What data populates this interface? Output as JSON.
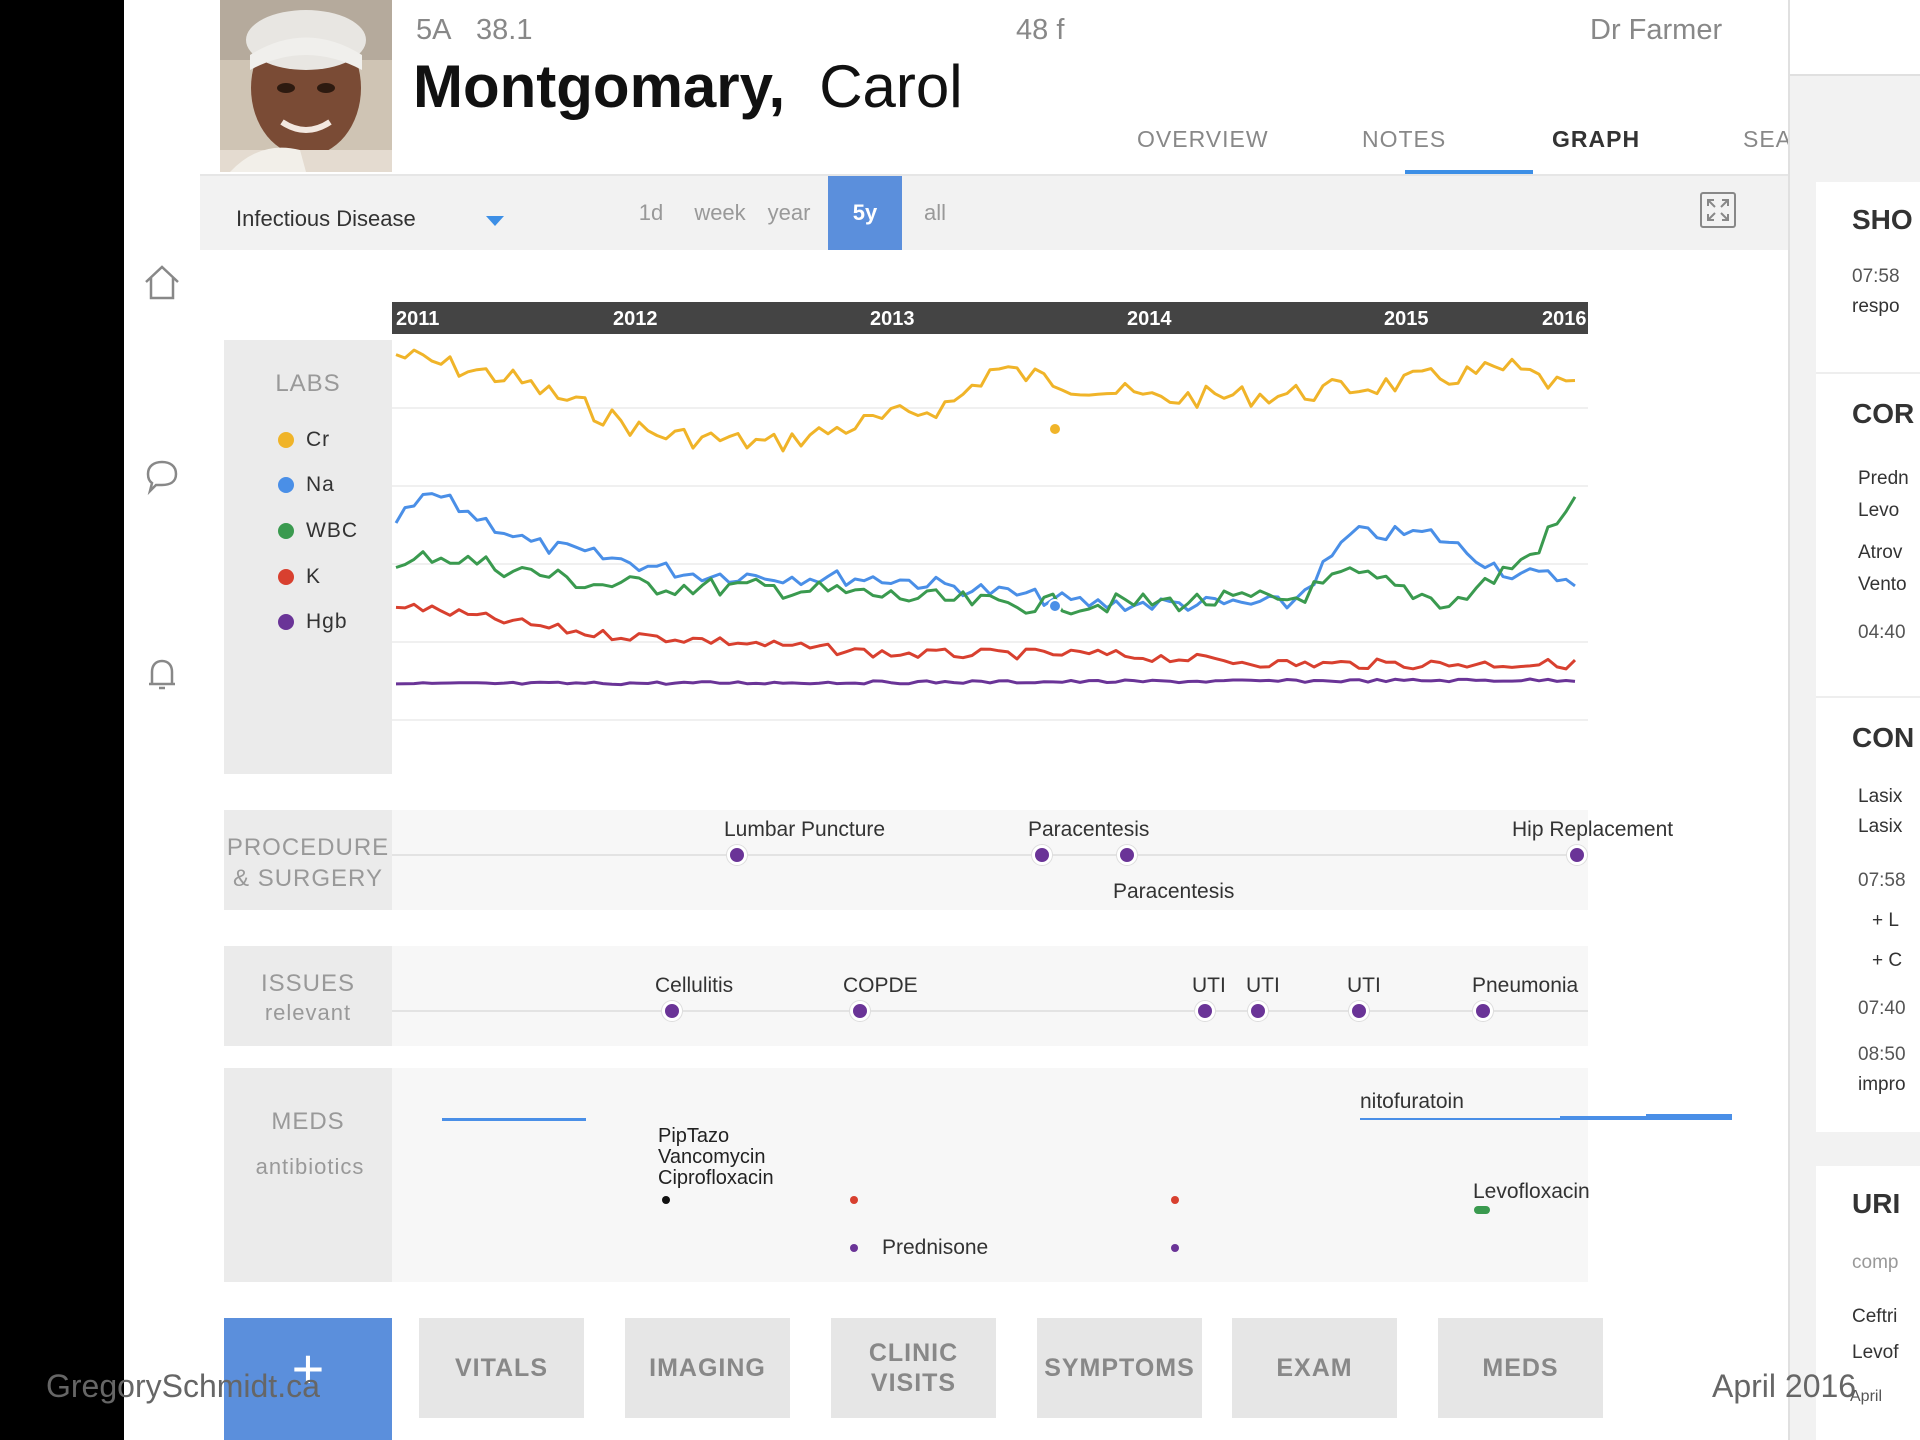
{
  "patient": {
    "room": "5A",
    "temp": "38.1",
    "age_sex": "48 f",
    "doctor": "Dr Farmer",
    "last_name": "Montgomary,",
    "first_name": "Carol"
  },
  "tabs": [
    "OVERVIEW",
    "NOTES",
    "GRAPH",
    "SEARCH"
  ],
  "active_tab": "GRAPH",
  "toolbar": {
    "filter": "Infectious Disease",
    "ranges": [
      "1d",
      "week",
      "year",
      "5y",
      "all"
    ],
    "active_range": "5y"
  },
  "timeline": {
    "years": [
      "2011",
      "2012",
      "2013",
      "2014",
      "2015",
      "2016"
    ]
  },
  "labs": {
    "title": "LABS",
    "legend": [
      {
        "name": "Cr",
        "color": "#f0b429"
      },
      {
        "name": "Na",
        "color": "#4a8fe7"
      },
      {
        "name": "WBC",
        "color": "#3a9a4f"
      },
      {
        "name": "K",
        "color": "#d8402f"
      },
      {
        "name": "Hgb",
        "color": "#6a3497"
      }
    ]
  },
  "procedures": {
    "title_line1": "PROCEDURE",
    "title_line2": "& SURGERY",
    "events": [
      {
        "label": "Lumbar Puncture",
        "year": 2012.2
      },
      {
        "label": "Paracentesis",
        "year": 2013.4
      },
      {
        "label": "Paracentesis",
        "year": 2013.73
      },
      {
        "label": "Hip Replacement",
        "year": 2015.85
      }
    ]
  },
  "issues": {
    "title_line1": "ISSUES",
    "title_line2": "relevant",
    "events": [
      {
        "label": "Cellulitis",
        "year": 2011.95
      },
      {
        "label": "COPDE",
        "year": 2012.68
      },
      {
        "label": "UTI",
        "year": 2014.03
      },
      {
        "label": "UTI",
        "year": 2014.23
      },
      {
        "label": "UTI",
        "year": 2014.62
      },
      {
        "label": "Pneumonia",
        "year": 2015.1
      }
    ]
  },
  "meds": {
    "title_line1": "MEDS",
    "title_line2": "antibiotics",
    "labels": {
      "piptazo": "PipTazo",
      "vancomycin": "Vancomycin",
      "ciprofloxacin": "Ciprofloxacin",
      "prednisone": "Prednisone",
      "nitofuratoin": "nitofuratoin",
      "levofloxacin": "Levofloxacin"
    }
  },
  "bottom_buttons": {
    "add": "+",
    "vitals": "VITALS",
    "imaging": "IMAGING",
    "clinic_line1": "CLINIC",
    "clinic_line2": "VISITS",
    "symptoms": "SYMPTOMS",
    "exam": "EXAM",
    "meds": "MEDS"
  },
  "right_panel": {
    "card1": {
      "title": "SHO",
      "time": "07:58",
      "text": "respo"
    },
    "card2": {
      "title": "COR",
      "items": [
        "Predn",
        "Levo",
        "Atrov",
        "Vento"
      ],
      "time": "04:40"
    },
    "card3": {
      "title": "CON",
      "items": [
        "Lasix",
        "Lasix"
      ],
      "time1": "07:58",
      "add1": "+ L",
      "add2": "+ C",
      "time2": "07:40",
      "time3": "08:50",
      "text": "impro"
    },
    "card4": {
      "title": "URI",
      "sub": "comp",
      "items": [
        "Ceftri",
        "Levof"
      ],
      "footer": "April"
    }
  },
  "credits": {
    "left": "GregorySchmidt.ca",
    "right": "April 2016"
  }
}
